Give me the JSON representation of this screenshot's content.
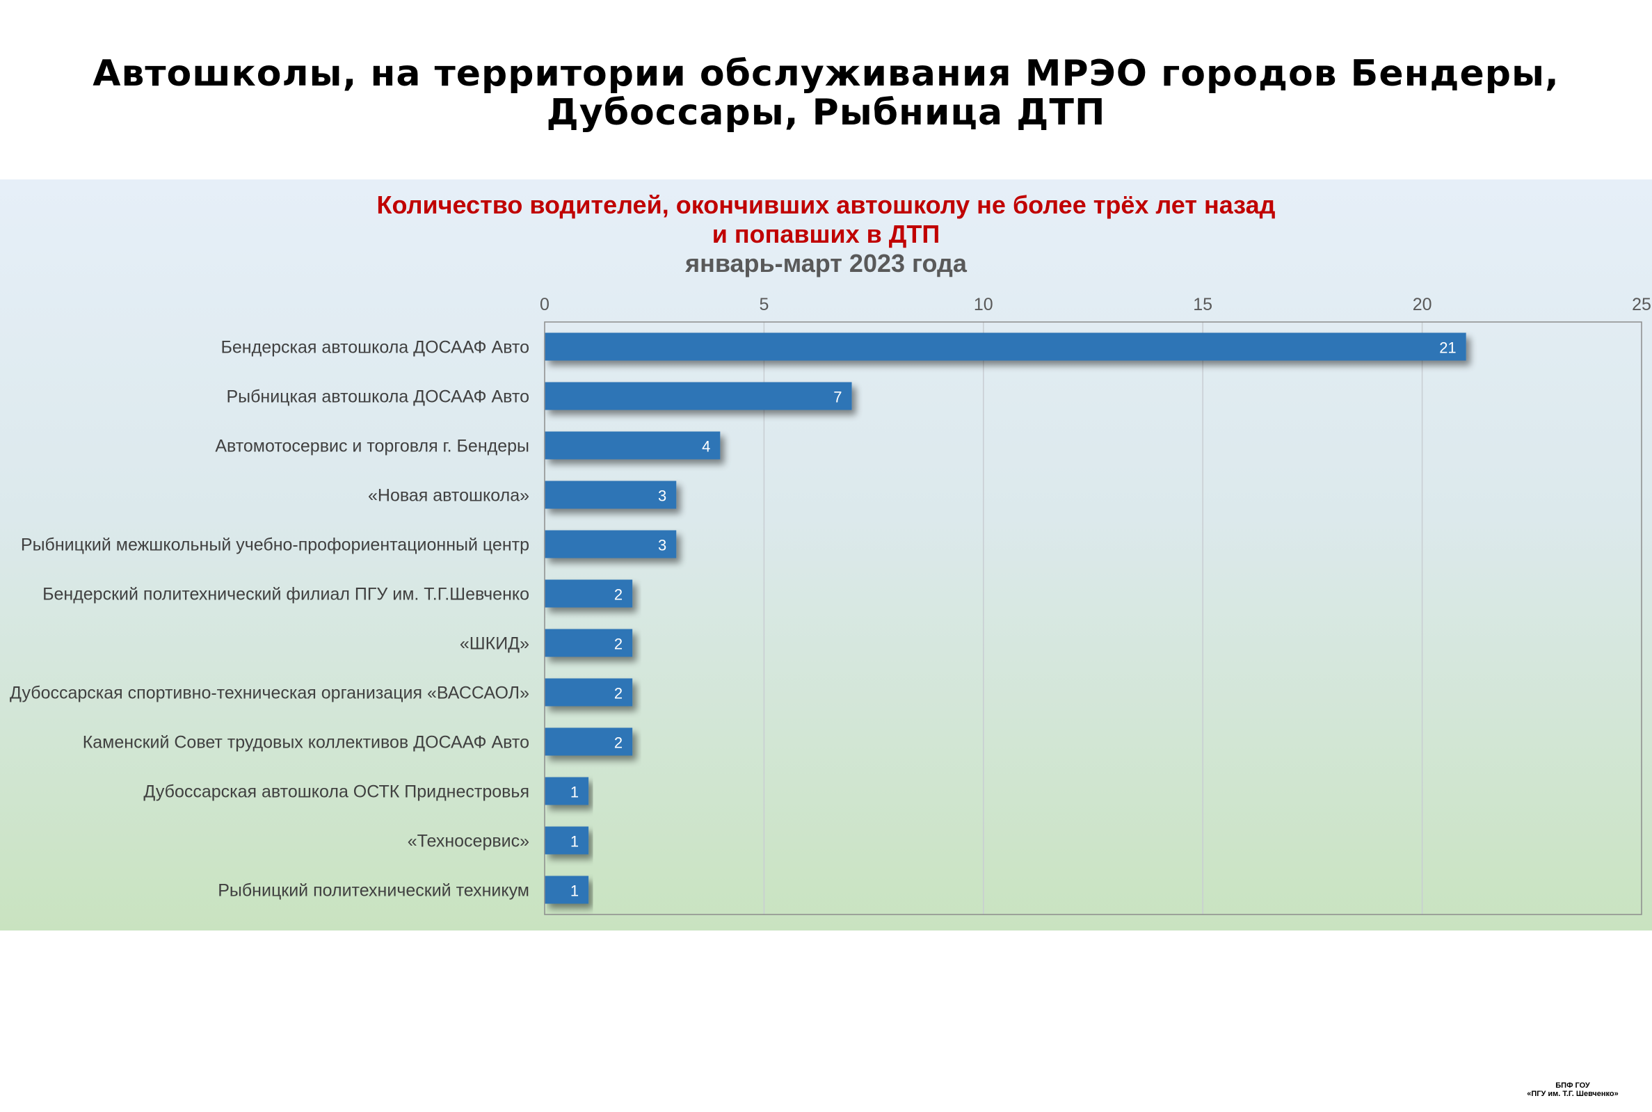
{
  "page": {
    "title_line1": "Автошколы, на территории обслуживания МРЭО городов Бендеры,",
    "title_line2": "Дубоссары, Рыбница ДТП",
    "footer_line1": "БПФ ГОУ",
    "footer_line2": "«ПГУ им. Т.Г. Шевченко»"
  },
  "chart_data": {
    "type": "bar",
    "orientation": "horizontal",
    "title_line1": "Количество водителей, окончивших автошколу не более трёх лет назад",
    "title_line2": "и попавших в ДТП",
    "subtitle": "январь-март 2023 года",
    "categories": [
      "Бендерская автошкола ДОСААФ Авто",
      "Рыбницкая автошкола ДОСААФ Авто",
      "Автомотосервис и торговля г. Бендеры",
      "«Новая автошкола»",
      "Рыбницкий межшкольный учебно-профориентационный центр",
      "Бендерский политехнический филиал ПГУ им. Т.Г.Шевченко",
      "«ШКИД»",
      "Дубоссарская спортивно-техническая организация «ВАССАОЛ»",
      "Каменский Совет трудовых коллективов ДОСААФ Авто",
      "Дубоссарская автошкола ОСТК Приднестровья",
      "«Техносервис»",
      "Рыбницкий политехнический техникум"
    ],
    "values": [
      21,
      7,
      4,
      3,
      3,
      2,
      2,
      2,
      2,
      1,
      1,
      1
    ],
    "xlim": [
      0,
      25
    ],
    "xticks": [
      0,
      5,
      10,
      15,
      20,
      25
    ],
    "axis_position": "top",
    "grid": true,
    "data_labels": true,
    "bar_color": "#2e75b6",
    "title_color": "#c00000",
    "subtitle_color": "#595959"
  }
}
